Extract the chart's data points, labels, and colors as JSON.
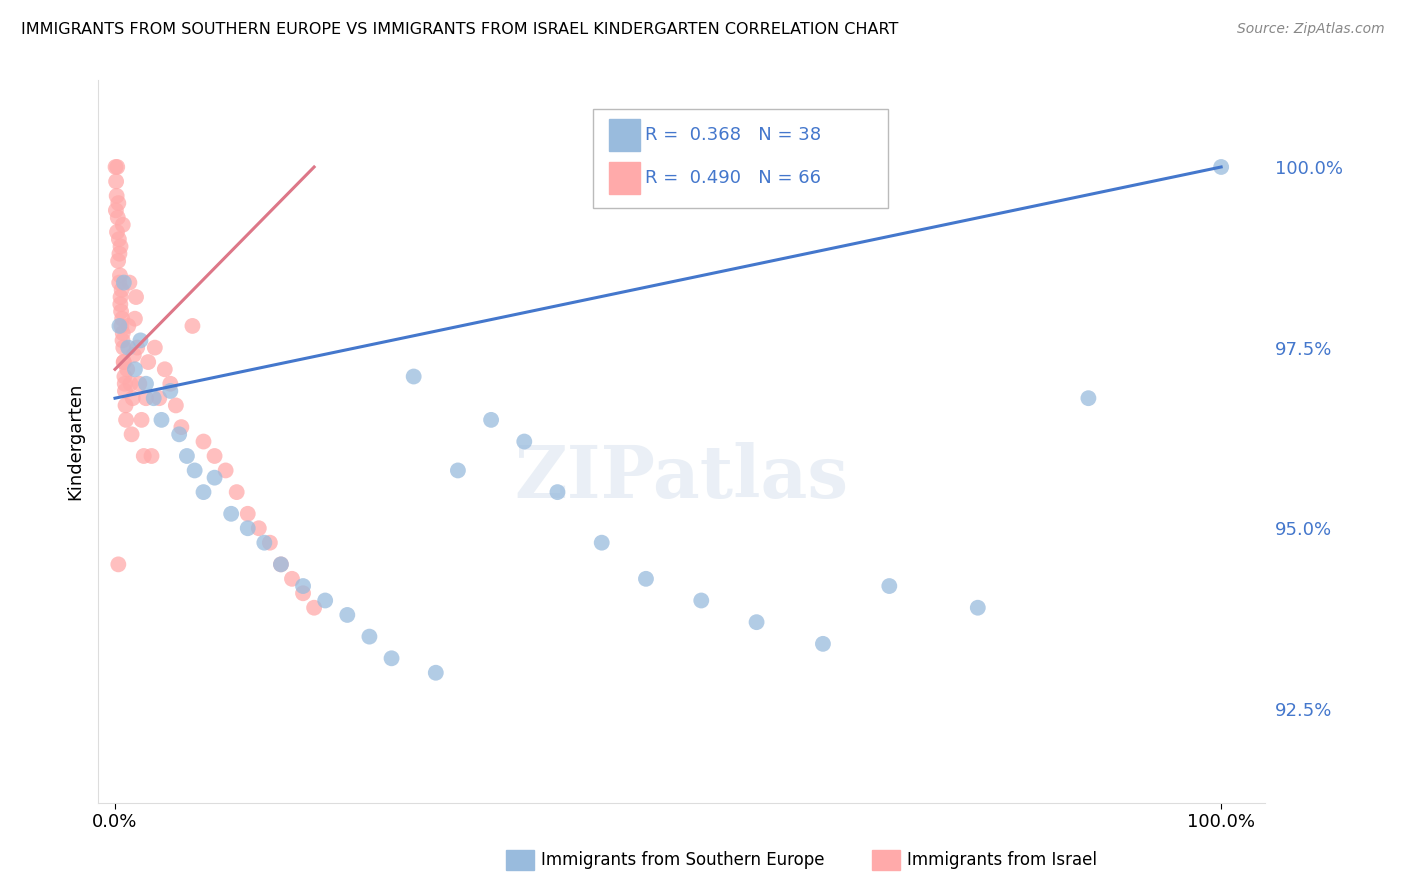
{
  "title": "IMMIGRANTS FROM SOUTHERN EUROPE VS IMMIGRANTS FROM ISRAEL KINDERGARTEN CORRELATION CHART",
  "source": "Source: ZipAtlas.com",
  "ylabel": "Kindergarten",
  "legend_label1": "Immigrants from Southern Europe",
  "legend_label2": "Immigrants from Israel",
  "r1": 0.368,
  "n1": 38,
  "r2": 0.49,
  "n2": 66,
  "blue_color": "#99BBDD",
  "pink_color": "#FFAAAA",
  "blue_line_color": "#4477CC",
  "pink_line_color": "#DD7788",
  "ymin": 91.2,
  "ymax": 101.2,
  "xmin": -1.5,
  "xmax": 104.0,
  "blue_x": [
    0.4,
    0.8,
    1.2,
    1.8,
    2.3,
    2.8,
    3.5,
    4.2,
    5.0,
    5.8,
    6.5,
    7.2,
    8.0,
    9.0,
    10.5,
    12.0,
    13.5,
    15.0,
    17.0,
    19.0,
    21.0,
    23.0,
    25.0,
    27.0,
    29.0,
    31.0,
    34.0,
    37.0,
    40.0,
    44.0,
    48.0,
    53.0,
    58.0,
    64.0,
    70.0,
    78.0,
    88.0,
    100.0
  ],
  "blue_y": [
    97.8,
    98.4,
    97.5,
    97.2,
    97.6,
    97.0,
    96.8,
    96.5,
    96.9,
    96.3,
    96.0,
    95.8,
    95.5,
    95.7,
    95.2,
    95.0,
    94.8,
    94.5,
    94.2,
    94.0,
    93.8,
    93.5,
    93.2,
    97.1,
    93.0,
    95.8,
    96.5,
    96.2,
    95.5,
    94.8,
    94.3,
    94.0,
    93.7,
    93.4,
    94.2,
    93.9,
    96.8,
    100.0
  ],
  "pink_x": [
    0.05,
    0.1,
    0.15,
    0.2,
    0.25,
    0.3,
    0.35,
    0.4,
    0.45,
    0.5,
    0.55,
    0.6,
    0.65,
    0.7,
    0.75,
    0.8,
    0.85,
    0.9,
    0.95,
    1.0,
    1.1,
    1.2,
    1.3,
    1.4,
    1.5,
    1.6,
    1.7,
    1.8,
    1.9,
    2.0,
    2.2,
    2.4,
    2.6,
    2.8,
    3.0,
    3.3,
    3.6,
    4.0,
    4.5,
    5.0,
    5.5,
    6.0,
    7.0,
    8.0,
    9.0,
    10.0,
    11.0,
    12.0,
    13.0,
    14.0,
    15.0,
    16.0,
    17.0,
    18.0,
    0.08,
    0.18,
    0.28,
    0.38,
    0.48,
    0.58,
    0.68,
    0.78,
    0.88,
    0.3,
    0.5,
    0.7
  ],
  "pink_y": [
    100.0,
    99.8,
    99.6,
    100.0,
    99.3,
    99.5,
    99.0,
    98.8,
    98.5,
    98.2,
    98.0,
    98.3,
    97.9,
    97.7,
    97.5,
    97.3,
    97.1,
    96.9,
    96.7,
    96.5,
    97.2,
    97.8,
    98.4,
    97.0,
    96.3,
    96.8,
    97.4,
    97.9,
    98.2,
    97.5,
    97.0,
    96.5,
    96.0,
    96.8,
    97.3,
    96.0,
    97.5,
    96.8,
    97.2,
    97.0,
    96.7,
    96.4,
    97.8,
    96.2,
    96.0,
    95.8,
    95.5,
    95.2,
    95.0,
    94.8,
    94.5,
    94.3,
    94.1,
    93.9,
    99.4,
    99.1,
    98.7,
    98.4,
    98.1,
    97.8,
    97.6,
    97.3,
    97.0,
    94.5,
    98.9,
    99.2
  ],
  "blue_line_x": [
    0.0,
    100.0
  ],
  "blue_line_y": [
    96.8,
    100.0
  ],
  "pink_line_x": [
    0.0,
    18.0
  ],
  "pink_line_y": [
    97.2,
    100.0
  ]
}
